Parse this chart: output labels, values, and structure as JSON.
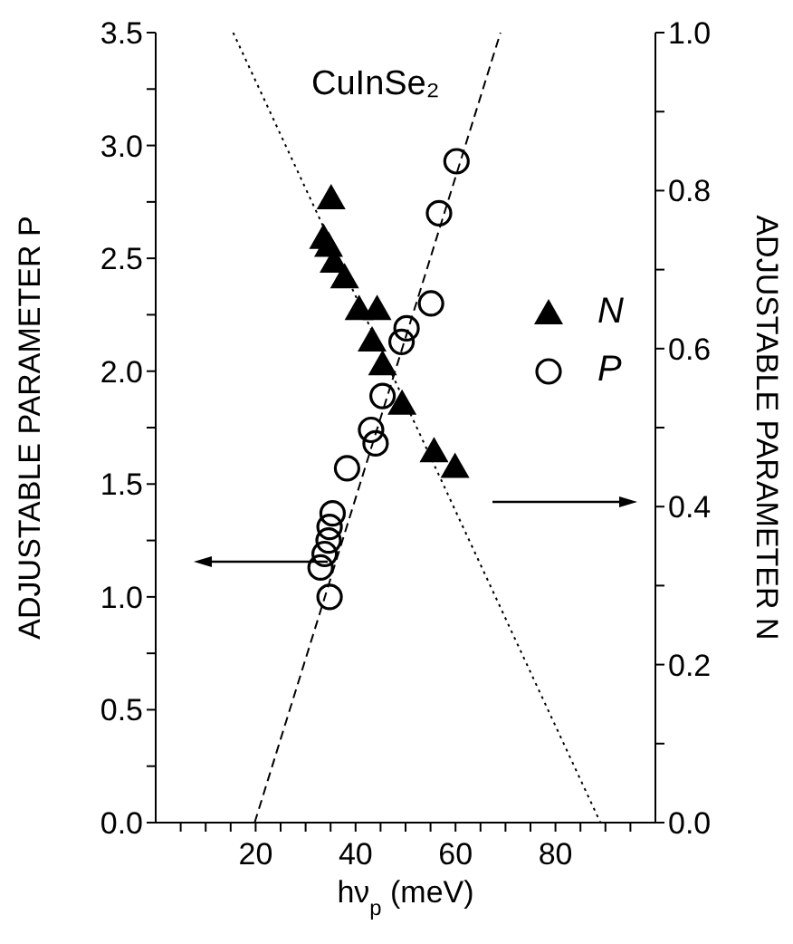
{
  "chart_data": {
    "type": "scatter",
    "xlabel": "hν$_{p}$  (meV)",
    "ylabel": "ADJUSTABLE  PARAMETER  P",
    "y2label": "ADJUSTABLE  PARAMETER  N",
    "annotations": [
      "CuInSe₂"
    ],
    "xlim": [
      0,
      100
    ],
    "xticks": [
      {
        "value": 5,
        "label": null
      },
      {
        "value": 10,
        "label": null
      },
      {
        "value": 15,
        "label": null
      },
      20,
      {
        "value": 25,
        "label": null
      },
      {
        "value": 30,
        "label": null
      },
      {
        "value": 35,
        "label": null
      },
      40,
      {
        "value": 45,
        "label": null
      },
      {
        "value": 50,
        "label": null
      },
      {
        "value": 55,
        "label": null
      },
      60,
      {
        "value": 65,
        "label": null
      },
      {
        "value": 70,
        "label": null
      },
      {
        "value": 75,
        "label": null
      },
      80,
      {
        "value": 85,
        "label": null
      },
      {
        "value": 90,
        "label": null
      },
      {
        "value": 95,
        "label": null
      }
    ],
    "ylim": [
      0,
      3.5
    ],
    "yticks": [
      {
        "value": 0,
        "label": "0.0"
      },
      {
        "value": 0.25,
        "label": null
      },
      0.5,
      {
        "value": 0.75,
        "label": null
      },
      {
        "value": 1,
        "label": "1.0"
      },
      {
        "value": 1.25,
        "label": null
      },
      1.5,
      {
        "value": 1.75,
        "label": null
      },
      {
        "value": 2,
        "label": "2.0"
      },
      {
        "value": 2.25,
        "label": null
      },
      2.5,
      {
        "value": 2.75,
        "label": null
      },
      {
        "value": 3,
        "label": "3.0"
      },
      {
        "value": 3.25,
        "label": null
      },
      3.5
    ],
    "y2lim": [
      0,
      1
    ],
    "y2ticks": [
      {
        "value": 0,
        "label": "0.0"
      },
      {
        "value": 0.1,
        "label": null
      },
      0.2,
      {
        "value": 0.3,
        "label": null
      },
      0.4,
      {
        "value": 0.5,
        "label": null
      },
      0.6,
      {
        "value": 0.7,
        "label": null
      },
      0.8,
      {
        "value": 0.9,
        "label": null
      },
      {
        "value": 1,
        "label": "1.0"
      }
    ],
    "legend": "right",
    "series": [
      {
        "name": "N",
        "axis": "y2",
        "marker": "triangle",
        "color": "#000000",
        "x": [
          35.1,
          33.6,
          34.6,
          35.7,
          37.8,
          40.7,
          44.3,
          43.3,
          45.4,
          49.3,
          55.7,
          59.9
        ],
        "values": [
          0.79,
          0.74,
          0.73,
          0.71,
          0.69,
          0.65,
          0.65,
          0.61,
          0.58,
          0.53,
          0.47,
          0.45
        ]
      },
      {
        "name": "P",
        "marker": "circle",
        "color": "#000000",
        "x": [
          60.2,
          56.7,
          55.1,
          50.2,
          49.2,
          45.4,
          43.1,
          44.0,
          38.3,
          35.4,
          34.8,
          34.6,
          33.8,
          33.0,
          34.8
        ],
        "values": [
          2.93,
          2.7,
          2.3,
          2.19,
          2.13,
          1.89,
          1.74,
          1.68,
          1.57,
          1.37,
          1.31,
          1.25,
          1.19,
          1.13,
          1.0
        ]
      },
      {
        "type": "line",
        "line_style": "dashed",
        "marker": "none",
        "color": "#000000",
        "x": [
          19.8,
          69
        ],
        "values": [
          0,
          3.5
        ]
      },
      {
        "type": "line",
        "axis": "y2",
        "line_style": "dotted",
        "marker": "none",
        "color": "#000000",
        "x": [
          15.5,
          89
        ],
        "values": [
          1,
          0
        ]
      }
    ]
  }
}
